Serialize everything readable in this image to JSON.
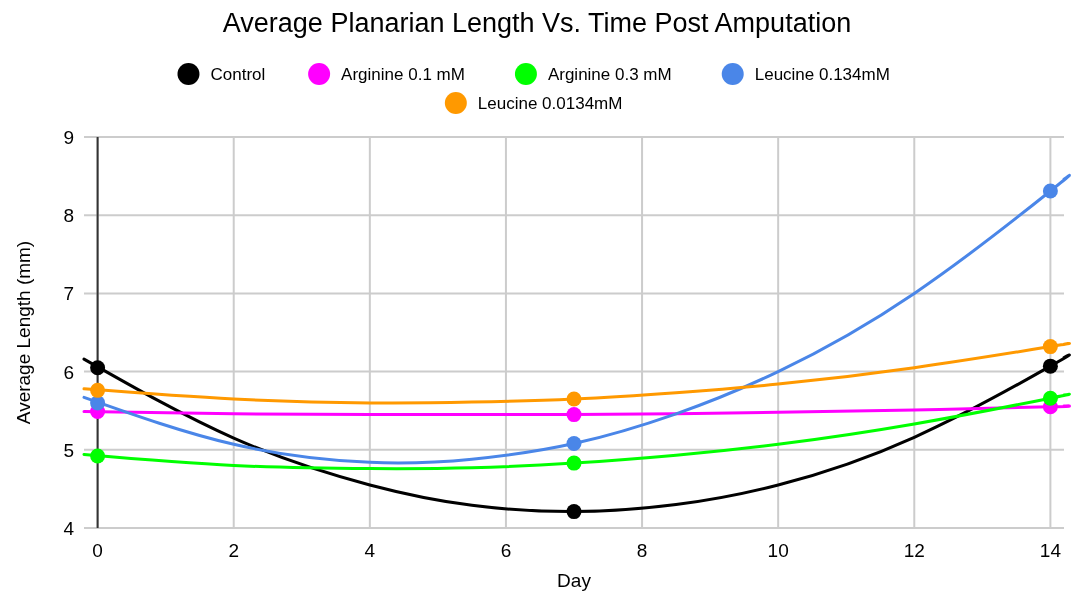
{
  "chart_data": {
    "type": "scatter",
    "title": "Average Planarian Length Vs. Time Post Amputation",
    "xlabel": "Day",
    "ylabel": "Average Length (mm)",
    "x": [
      0,
      7,
      14
    ],
    "series": [
      {
        "name": "Control",
        "color": "#000000",
        "values": [
          6.05,
          4.21,
          6.07
        ]
      },
      {
        "name": "Arginine 0.1 mM",
        "color": "#ff00ff",
        "values": [
          5.49,
          5.45,
          5.55
        ]
      },
      {
        "name": "Arginine 0.3 mM",
        "color": "#00ff00",
        "values": [
          4.92,
          4.83,
          5.66
        ]
      },
      {
        "name": "Leucine 0.134mM",
        "color": "#4a86e8",
        "values": [
          5.6,
          5.08,
          8.31
        ]
      },
      {
        "name": "Leucine 0.0134mM",
        "color": "#ff9900",
        "values": [
          5.76,
          5.65,
          6.32
        ]
      },
      {
        "type": "line",
        "marker": "none",
        "color": "#000000",
        "x": [
          -0.2,
          2,
          4,
          5.5,
          7,
          8.5,
          10,
          12,
          14,
          14.2
        ],
        "values": [
          6.16,
          5.15,
          4.55,
          4.29,
          4.21,
          4.3,
          4.55,
          5.16,
          6.07,
          6.18
        ]
      },
      {
        "type": "line",
        "marker": "none",
        "color": "#ff00ff",
        "x": [
          -0.2,
          2,
          4,
          5.5,
          7,
          8.5,
          10,
          12,
          14,
          14.2
        ],
        "values": [
          5.49,
          5.46,
          5.45,
          5.45,
          5.45,
          5.46,
          5.48,
          5.51,
          5.55,
          5.56
        ]
      },
      {
        "type": "line",
        "marker": "none",
        "color": "#00ff00",
        "x": [
          -0.2,
          2,
          4,
          5.5,
          7,
          8.5,
          10,
          12,
          14,
          14.2
        ],
        "values": [
          4.94,
          4.8,
          4.76,
          4.77,
          4.83,
          4.93,
          5.07,
          5.33,
          5.66,
          5.7
        ]
      },
      {
        "type": "line",
        "marker": "none",
        "color": "#4a86e8",
        "x": [
          -0.2,
          2,
          4,
          5.5,
          7,
          8.5,
          10,
          12,
          14,
          14.2
        ],
        "values": [
          5.67,
          5.07,
          4.84,
          4.88,
          5.08,
          5.46,
          6.0,
          7.0,
          8.31,
          8.46
        ]
      },
      {
        "type": "line",
        "marker": "none",
        "color": "#ff9900",
        "x": [
          -0.2,
          2,
          4,
          5.5,
          7,
          8.5,
          10,
          12,
          14,
          14.2
        ],
        "values": [
          5.78,
          5.65,
          5.6,
          5.61,
          5.65,
          5.73,
          5.84,
          6.05,
          6.32,
          6.35
        ]
      }
    ],
    "xlim": [
      -0.2,
      14.2
    ],
    "xticks": [
      0,
      2,
      4,
      6,
      8,
      10,
      12,
      14
    ],
    "ylim": [
      4,
      9
    ],
    "yticks": [
      4,
      5,
      6,
      7,
      8,
      9
    ],
    "grid": true,
    "legend": "top",
    "marker": "circle",
    "line_style": "solid"
  }
}
